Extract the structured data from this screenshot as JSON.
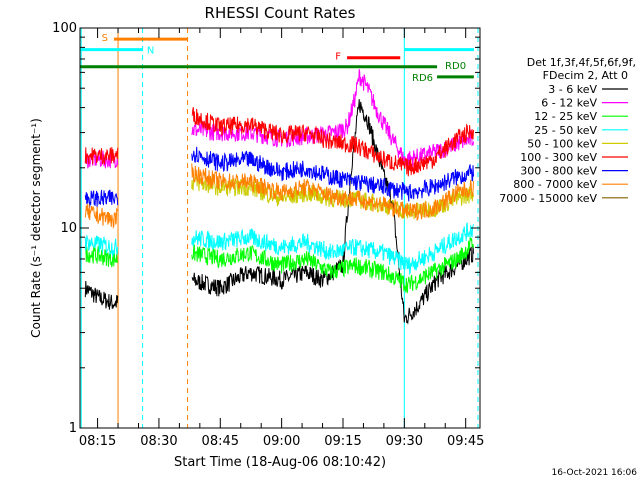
{
  "chart_data": {
    "type": "line",
    "title": "RHESSI Count Rates",
    "ylabel": "Count Rate (s⁻¹ detector segment⁻¹)",
    "xlabel": "Start Time (18-Aug-06 08:10:42)",
    "y_scale": "log",
    "ylim": [
      1,
      100
    ],
    "y_ticks": [
      {
        "v": 1,
        "label": "1"
      },
      {
        "v": 10,
        "label": "10"
      },
      {
        "v": 100,
        "label": "100"
      }
    ],
    "xlim": [
      "08:10:42",
      "09:48:30"
    ],
    "x_ticks": [
      "08:15",
      "08:30",
      "08:45",
      "09:00",
      "09:15",
      "09:30",
      "09:45"
    ],
    "legend": {
      "placement": "right",
      "header": [
        "Det 1f,3f,4f,5f,6f,9f,",
        "FDecim 2, Att 0"
      ]
    },
    "series": [
      {
        "name": "3 - 6 keV",
        "color": "#000000",
        "points": [
          [
            "08:12",
            5.0
          ],
          [
            "08:15",
            4.5
          ],
          [
            "08:19",
            4.2
          ],
          [
            "08:38",
            5.5
          ],
          [
            "08:45",
            5.0
          ],
          [
            "08:52",
            6.0
          ],
          [
            "09:00",
            5.5
          ],
          [
            "09:06",
            6.0
          ],
          [
            "09:10",
            5.5
          ],
          [
            "09:15",
            6.5
          ],
          [
            "09:17",
            20
          ],
          [
            "09:19",
            42
          ],
          [
            "09:21",
            35
          ],
          [
            "09:23",
            25
          ],
          [
            "09:25",
            18
          ],
          [
            "09:27",
            14
          ],
          [
            "09:30",
            3.5
          ],
          [
            "09:33",
            4.0
          ],
          [
            "09:38",
            5.5
          ],
          [
            "09:43",
            6.5
          ],
          [
            "09:47",
            7.5
          ]
        ]
      },
      {
        "name": "6 - 12 keV",
        "color": "#ff00ff",
        "points": [
          [
            "08:12",
            22
          ],
          [
            "08:19",
            22
          ],
          [
            "08:38",
            31
          ],
          [
            "08:45",
            30
          ],
          [
            "08:52",
            30
          ],
          [
            "09:00",
            28
          ],
          [
            "09:08",
            29
          ],
          [
            "09:13",
            30
          ],
          [
            "09:16",
            32
          ],
          [
            "09:18",
            45
          ],
          [
            "09:19",
            58
          ],
          [
            "09:21",
            50
          ],
          [
            "09:23",
            40
          ],
          [
            "09:25",
            33
          ],
          [
            "09:27",
            28
          ],
          [
            "09:30",
            22
          ],
          [
            "09:35",
            23
          ],
          [
            "09:40",
            25
          ],
          [
            "09:44",
            27
          ],
          [
            "09:47",
            28
          ]
        ]
      },
      {
        "name": "12 - 25 keV",
        "color": "#00ff00",
        "points": [
          [
            "08:12",
            7.5
          ],
          [
            "08:19",
            7.0
          ],
          [
            "08:38",
            7.5
          ],
          [
            "08:45",
            7.0
          ],
          [
            "08:52",
            7.5
          ],
          [
            "09:00",
            6.5
          ],
          [
            "09:06",
            7.0
          ],
          [
            "09:12",
            6.0
          ],
          [
            "09:18",
            6.5
          ],
          [
            "09:25",
            6.0
          ],
          [
            "09:31",
            5.2
          ],
          [
            "09:37",
            6.0
          ],
          [
            "09:43",
            7.0
          ],
          [
            "09:47",
            8.5
          ]
        ]
      },
      {
        "name": "25 - 50 keV",
        "color": "#00ffff",
        "points": [
          [
            "08:12",
            8.5
          ],
          [
            "08:19",
            8.0
          ],
          [
            "08:38",
            9.0
          ],
          [
            "08:45",
            8.5
          ],
          [
            "08:52",
            9.0
          ],
          [
            "09:00",
            8.0
          ],
          [
            "09:06",
            8.5
          ],
          [
            "09:12",
            7.5
          ],
          [
            "09:18",
            8.0
          ],
          [
            "09:25",
            7.5
          ],
          [
            "09:31",
            6.5
          ],
          [
            "09:37",
            7.5
          ],
          [
            "09:43",
            9.0
          ],
          [
            "09:47",
            10.0
          ]
        ]
      },
      {
        "name": "50 - 100 keV",
        "color": "#cccc00",
        "points": [
          [
            "08:38",
            17
          ],
          [
            "08:45",
            16
          ],
          [
            "08:52",
            16
          ],
          [
            "09:00",
            14
          ],
          [
            "09:06",
            15
          ],
          [
            "09:12",
            14
          ],
          [
            "09:18",
            14
          ],
          [
            "09:25",
            13
          ],
          [
            "09:31",
            12
          ],
          [
            "09:37",
            12.5
          ],
          [
            "09:43",
            14
          ],
          [
            "09:47",
            15
          ]
        ]
      },
      {
        "name": "100 - 300 keV",
        "color": "#ff0000",
        "points": [
          [
            "08:12",
            23
          ],
          [
            "08:19",
            23
          ],
          [
            "08:38",
            37
          ],
          [
            "08:45",
            32
          ],
          [
            "08:52",
            33
          ],
          [
            "09:00",
            29
          ],
          [
            "09:06",
            30
          ],
          [
            "09:12",
            27
          ],
          [
            "09:18",
            26
          ],
          [
            "09:25",
            22
          ],
          [
            "09:31",
            20
          ],
          [
            "09:37",
            22
          ],
          [
            "09:43",
            28
          ],
          [
            "09:47",
            31
          ]
        ]
      },
      {
        "name": "300 - 800 keV",
        "color": "#0000ff",
        "points": [
          [
            "08:12",
            14
          ],
          [
            "08:19",
            14
          ],
          [
            "08:38",
            24
          ],
          [
            "08:45",
            21
          ],
          [
            "08:52",
            22
          ],
          [
            "09:00",
            19
          ],
          [
            "09:06",
            20
          ],
          [
            "09:12",
            18
          ],
          [
            "09:18",
            17
          ],
          [
            "09:25",
            16
          ],
          [
            "09:31",
            15
          ],
          [
            "09:37",
            16
          ],
          [
            "09:43",
            18
          ],
          [
            "09:47",
            19
          ]
        ]
      },
      {
        "name": "800 - 7000 keV",
        "color": "#ff8000",
        "points": [
          [
            "08:12",
            12
          ],
          [
            "08:19",
            11
          ],
          [
            "08:38",
            19
          ],
          [
            "08:45",
            17
          ],
          [
            "08:52",
            17
          ],
          [
            "09:00",
            15
          ],
          [
            "09:06",
            16
          ],
          [
            "09:12",
            14.5
          ],
          [
            "09:18",
            14
          ],
          [
            "09:25",
            13
          ],
          [
            "09:31",
            12
          ],
          [
            "09:37",
            12.5
          ],
          [
            "09:43",
            15
          ],
          [
            "09:47",
            16
          ]
        ]
      },
      {
        "name": "7000 - 15000 keV",
        "color": "#806000",
        "points": []
      }
    ],
    "annotations": [
      {
        "label": "S",
        "color": "#ff8000",
        "y": 88,
        "x": [
          "08:19",
          "08:37"
        ]
      },
      {
        "label": "N",
        "color": "#00ffff",
        "y": 78,
        "x": [
          "08:10:42",
          "08:26"
        ]
      },
      {
        "label": "",
        "color": "#00ffff",
        "y": 78,
        "x": [
          "09:30",
          "09:47"
        ]
      },
      {
        "label": "F",
        "color": "#ff0000",
        "y": 71,
        "x": [
          "09:16",
          "09:29"
        ]
      },
      {
        "label": "RD0",
        "color": "#008000",
        "y": 64,
        "x": [
          "08:10:42",
          "09:38"
        ]
      },
      {
        "label": "RD6",
        "color": "#008000",
        "y": 57,
        "x": [
          "09:38",
          "09:47"
        ]
      }
    ],
    "vlines": [
      {
        "t": "08:11",
        "color": "#00ffff",
        "style": "solid"
      },
      {
        "t": "08:20",
        "color": "#ff8000",
        "style": "solid"
      },
      {
        "t": "08:26",
        "color": "#00ffff",
        "style": "dashed"
      },
      {
        "t": "08:37",
        "color": "#ff8000",
        "style": "dashed"
      },
      {
        "t": "09:30",
        "color": "#00ffff",
        "style": "solid"
      },
      {
        "t": "09:48",
        "color": "#00ffff",
        "style": "dashed"
      }
    ],
    "gaps": [
      [
        "08:20",
        "08:38"
      ]
    ],
    "footer": "16-Oct-2021 16:06"
  }
}
